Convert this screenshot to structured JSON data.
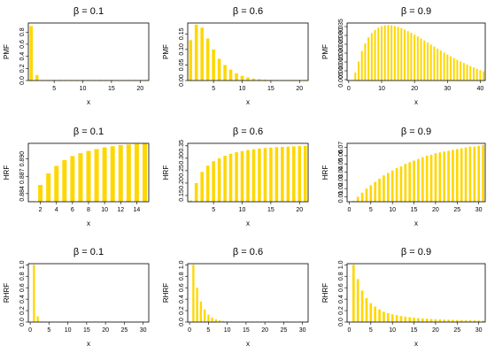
{
  "chart_data": [
    {
      "type": "bar",
      "title": "β = 0.1",
      "xlabel": "x",
      "ylabel": "PMF",
      "x": [
        1,
        2,
        3,
        4,
        5,
        6,
        7,
        8,
        9,
        10,
        11,
        12,
        13,
        14,
        15,
        16,
        17,
        18,
        19,
        20,
        21
      ],
      "values": [
        0.9,
        0.09,
        0.009,
        0.0009,
        0.0001,
        0,
        0,
        0,
        0,
        0,
        0,
        0,
        0,
        0,
        0,
        0,
        0,
        0,
        0,
        0,
        0
      ],
      "xlim": [
        0.5,
        21.5
      ],
      "ylim": [
        0,
        0.95
      ],
      "xticks": [
        5,
        10,
        15,
        20
      ],
      "yticks": [
        0.0,
        0.2,
        0.4,
        0.6,
        0.8
      ]
    },
    {
      "type": "bar",
      "title": "β = 0.6",
      "xlabel": "x",
      "ylabel": "PMF",
      "x": [
        1,
        2,
        3,
        4,
        5,
        6,
        7,
        8,
        9,
        10,
        11,
        12,
        13,
        14,
        15,
        16,
        17,
        18,
        19,
        20,
        21
      ],
      "values": [
        0.13,
        0.18,
        0.17,
        0.135,
        0.1,
        0.07,
        0.05,
        0.035,
        0.023,
        0.015,
        0.01,
        0.006,
        0.004,
        0.0025,
        0.0016,
        0.001,
        0.0006,
        0.0004,
        0.0002,
        0.0001,
        0.0001
      ],
      "xlim": [
        0.5,
        21.5
      ],
      "ylim": [
        0,
        0.185
      ],
      "xticks": [
        5,
        10,
        15,
        20
      ],
      "yticks": [
        0.0,
        0.05,
        0.1,
        0.15
      ]
    },
    {
      "type": "bar",
      "title": "β = 0.9",
      "xlabel": "x",
      "ylabel": "PMF",
      "x": [
        1,
        2,
        3,
        4,
        5,
        6,
        7,
        8,
        9,
        10,
        11,
        12,
        13,
        14,
        15,
        16,
        17,
        18,
        19,
        20,
        21,
        22,
        23,
        24,
        25,
        26,
        27,
        28,
        29,
        30,
        31,
        32,
        33,
        34,
        35,
        36,
        37,
        38,
        39,
        40,
        41
      ],
      "values": [
        0.0045,
        0.009,
        0.0152,
        0.0212,
        0.0255,
        0.0289,
        0.0313,
        0.0331,
        0.0344,
        0.0352,
        0.0357,
        0.0358,
        0.0357,
        0.0353,
        0.0348,
        0.0341,
        0.0333,
        0.0324,
        0.0315,
        0.0304,
        0.0294,
        0.0282,
        0.0271,
        0.026,
        0.0248,
        0.0237,
        0.0225,
        0.0214,
        0.0203,
        0.0192,
        0.0182,
        0.0172,
        0.0162,
        0.0153,
        0.0144,
        0.0135,
        0.0127,
        0.0119,
        0.0111,
        0.0104,
        0.0097
      ],
      "xlim": [
        -0.5,
        41.5
      ],
      "ylim": [
        0.0045,
        0.037
      ],
      "xticks": [
        0,
        10,
        20,
        30,
        40
      ],
      "yticks": [
        0.005,
        0.01,
        0.015,
        0.02,
        0.025,
        0.03,
        0.035
      ]
    },
    {
      "type": "bar",
      "title": "β = 0.1",
      "xlabel": "x",
      "ylabel": "HRF",
      "x": [
        1,
        2,
        3,
        4,
        5,
        6,
        7,
        8,
        9,
        10,
        11,
        12,
        13,
        14,
        15
      ],
      "values": [
        0.8826,
        0.8855,
        0.8875,
        0.8888,
        0.8898,
        0.8905,
        0.891,
        0.8914,
        0.8917,
        0.892,
        0.8922,
        0.8924,
        0.8925,
        0.8926,
        0.8927
      ],
      "xlim": [
        0.5,
        15.5
      ],
      "ylim": [
        0.8826,
        0.8927
      ],
      "xticks": [
        2,
        4,
        6,
        8,
        10,
        12,
        14
      ],
      "yticks": [
        0.884,
        0.887,
        0.89
      ]
    },
    {
      "type": "bar",
      "title": "β = 0.6",
      "xlabel": "x",
      "ylabel": "HRF",
      "x": [
        1,
        2,
        3,
        4,
        5,
        6,
        7,
        8,
        9,
        10,
        11,
        12,
        13,
        14,
        15,
        16,
        17,
        18,
        19,
        20,
        21
      ],
      "values": [
        0.13,
        0.2,
        0.245,
        0.27,
        0.288,
        0.3,
        0.31,
        0.318,
        0.324,
        0.329,
        0.333,
        0.336,
        0.339,
        0.341,
        0.343,
        0.345,
        0.346,
        0.347,
        0.348,
        0.349,
        0.35
      ],
      "xlim": [
        0.5,
        21.5
      ],
      "ylim": [
        0.125,
        0.36
      ],
      "xticks": [
        5,
        10,
        15,
        20
      ],
      "yticks": [
        0.15,
        0.2,
        0.25,
        0.3,
        0.35
      ]
    },
    {
      "type": "bar",
      "title": "β = 0.9",
      "xlabel": "x",
      "ylabel": "HRF",
      "x": [
        1,
        2,
        3,
        4,
        5,
        6,
        7,
        8,
        9,
        10,
        11,
        12,
        13,
        14,
        15,
        16,
        17,
        18,
        19,
        20,
        21,
        22,
        23,
        24,
        25,
        26,
        27,
        28,
        29,
        30,
        31
      ],
      "values": [
        0.005,
        0.01,
        0.015,
        0.02,
        0.024,
        0.028,
        0.032,
        0.036,
        0.039,
        0.042,
        0.045,
        0.047,
        0.05,
        0.052,
        0.054,
        0.056,
        0.058,
        0.06,
        0.061,
        0.063,
        0.064,
        0.065,
        0.066,
        0.067,
        0.068,
        0.069,
        0.07,
        0.071,
        0.071,
        0.072,
        0.073
      ],
      "xlim": [
        -0.5,
        31.5
      ],
      "ylim": [
        0.004,
        0.075
      ],
      "xticks": [
        0,
        5,
        10,
        15,
        20,
        25,
        30
      ],
      "yticks": [
        0.01,
        0.02,
        0.03,
        0.04,
        0.05,
        0.06,
        0.07
      ]
    },
    {
      "type": "bar",
      "title": "β = 0.1",
      "xlabel": "x",
      "ylabel": "RHRF",
      "x": [
        1,
        2,
        3,
        4,
        5,
        6,
        7,
        8,
        9,
        10,
        11,
        12,
        13,
        14,
        15,
        16,
        17,
        18,
        19,
        20,
        21,
        22,
        23,
        24,
        25,
        26,
        27,
        28,
        29,
        30,
        31
      ],
      "values": [
        1.0,
        0.1,
        0.01,
        0.001,
        0,
        0,
        0,
        0,
        0,
        0,
        0,
        0,
        0,
        0,
        0,
        0,
        0,
        0,
        0,
        0,
        0,
        0,
        0,
        0,
        0,
        0,
        0,
        0,
        0,
        0,
        0
      ],
      "xlim": [
        -0.5,
        31.5
      ],
      "ylim": [
        0,
        1.02
      ],
      "xticks": [
        0,
        5,
        10,
        15,
        20,
        25,
        30
      ],
      "yticks": [
        0.0,
        0.2,
        0.4,
        0.6,
        0.8,
        1.0
      ]
    },
    {
      "type": "bar",
      "title": "β = 0.6",
      "xlabel": "x",
      "ylabel": "RHRF",
      "x": [
        1,
        2,
        3,
        4,
        5,
        6,
        7,
        8,
        9,
        10,
        11,
        12,
        13,
        14,
        15,
        16,
        17,
        18,
        19,
        20,
        21,
        22,
        23,
        24,
        25,
        26,
        27,
        28,
        29,
        30,
        31
      ],
      "values": [
        1.0,
        0.6,
        0.36,
        0.22,
        0.13,
        0.08,
        0.05,
        0.03,
        0.018,
        0.011,
        0.007,
        0.004,
        0.003,
        0.002,
        0.001,
        0.001,
        0,
        0,
        0,
        0,
        0,
        0,
        0,
        0,
        0,
        0,
        0,
        0,
        0,
        0,
        0
      ],
      "xlim": [
        -0.5,
        31.5
      ],
      "ylim": [
        0,
        1.02
      ],
      "xticks": [
        0,
        5,
        10,
        15,
        20,
        25,
        30
      ],
      "yticks": [
        0.0,
        0.2,
        0.4,
        0.6,
        0.8,
        1.0
      ]
    },
    {
      "type": "bar",
      "title": "β = 0.9",
      "xlabel": "x",
      "ylabel": "RHRF",
      "x": [
        1,
        2,
        3,
        4,
        5,
        6,
        7,
        8,
        9,
        10,
        11,
        12,
        13,
        14,
        15,
        16,
        17,
        18,
        19,
        20,
        21,
        22,
        23,
        24,
        25,
        26,
        27,
        28,
        29,
        30,
        31
      ],
      "values": [
        1.0,
        0.75,
        0.55,
        0.42,
        0.33,
        0.27,
        0.22,
        0.18,
        0.155,
        0.135,
        0.12,
        0.105,
        0.094,
        0.085,
        0.077,
        0.07,
        0.064,
        0.059,
        0.054,
        0.05,
        0.046,
        0.043,
        0.04,
        0.037,
        0.035,
        0.033,
        0.031,
        0.029,
        0.027,
        0.026,
        0.024
      ],
      "xlim": [
        -0.5,
        31.5
      ],
      "ylim": [
        0,
        1.02
      ],
      "xticks": [
        0,
        5,
        10,
        15,
        20,
        25,
        30
      ],
      "yticks": [
        0.0,
        0.2,
        0.4,
        0.6,
        0.8,
        1.0
      ]
    }
  ]
}
